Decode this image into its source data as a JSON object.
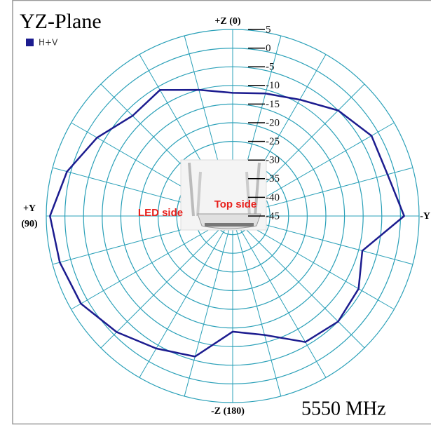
{
  "chart_data": {
    "type": "polar",
    "title": "YZ-Plane",
    "zero_location": "N",
    "direction": "counterclockwise",
    "rlim": [
      -45,
      5
    ],
    "rticks": [
      5,
      0,
      -5,
      -10,
      -15,
      -20,
      -25,
      -30,
      -35,
      -40,
      -45
    ],
    "grid_color": "#2aa0b8",
    "series": [
      {
        "name": "H+V",
        "color": "#1c1c8f",
        "theta": [
          0,
          15,
          30,
          45,
          60,
          75,
          90,
          105,
          120,
          135,
          150,
          165,
          180,
          195,
          210,
          225,
          240,
          255,
          270,
          285,
          300,
          315,
          330,
          345
        ],
        "values": [
          -12,
          -10,
          -6,
          -7,
          -3,
          1,
          4,
          3,
          2,
          -1,
          -4,
          -6,
          -14,
          -12,
          -6,
          -5,
          -6,
          -9,
          1,
          -2,
          -2,
          -5,
          -9,
          -11
        ]
      }
    ],
    "angle_labels": [
      "+Z (0)",
      "+Y",
      "(90)",
      "-Z (180)",
      "-Y"
    ],
    "annotation": "5550 MHz",
    "image_labels": [
      "LED side",
      "Top side"
    ]
  }
}
